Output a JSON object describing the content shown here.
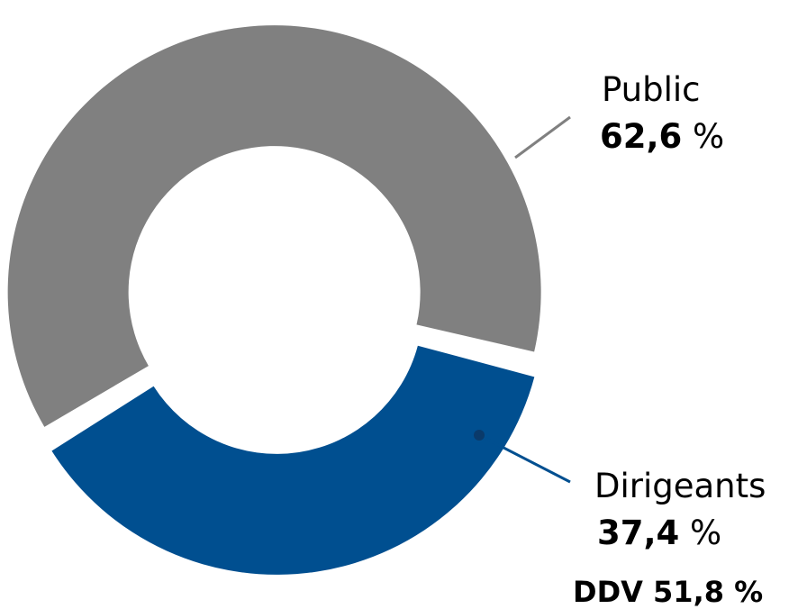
{
  "chart_data": {
    "type": "pie",
    "categories": [
      "Public",
      "Dirigeants"
    ],
    "values": [
      62.6,
      37.4
    ],
    "value_labels": [
      "62,6 %",
      "37,4 %"
    ],
    "colors": [
      "#808080",
      "#004f90"
    ],
    "annotation": "DDV 51,8 %"
  }
}
